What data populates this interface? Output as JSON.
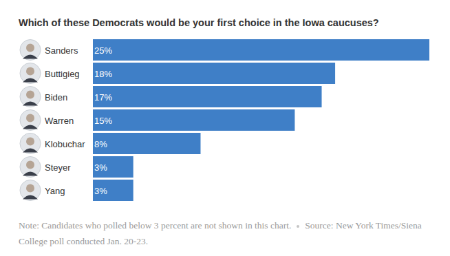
{
  "chart_data": {
    "type": "bar",
    "orientation": "horizontal",
    "title": "Which of these Democrats would be your first choice in the Iowa caucuses?",
    "categories": [
      "Sanders",
      "Buttigieg",
      "Biden",
      "Warren",
      "Klobuchar",
      "Steyer",
      "Yang"
    ],
    "values": [
      25,
      18,
      17,
      15,
      8,
      3,
      3
    ],
    "value_labels": [
      "25%",
      "18%",
      "17%",
      "15%",
      "8%",
      "3%",
      "3%"
    ],
    "color": "#3f7fc7",
    "data_labels": true,
    "tick_labels": "y",
    "note": "Note: Candidates who polled below 3 percent are not shown in this chart.",
    "source": "Source: New York Times/Siena College poll conducted Jan. 20-23."
  }
}
